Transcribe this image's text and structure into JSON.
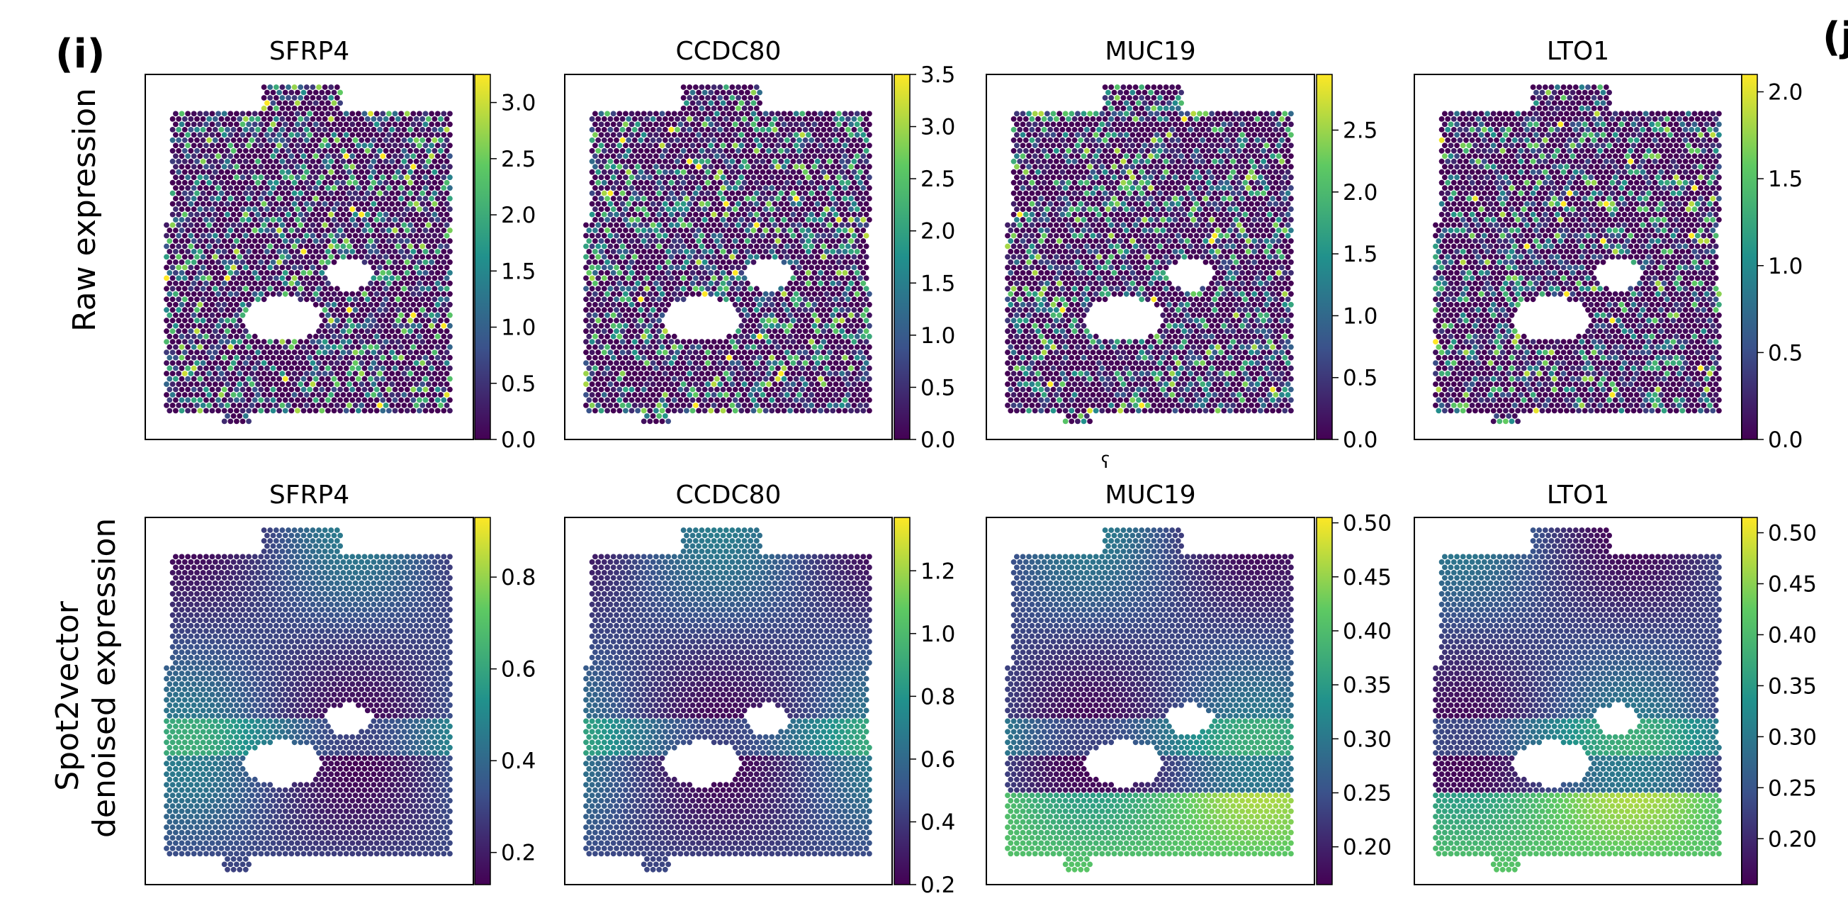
{
  "panel_labels": {
    "left": "(i)",
    "right": "(j"
  },
  "row_labels": {
    "raw": "Raw expression",
    "denoised_line1": "Spot2vector",
    "denoised_line2": "denoised expression"
  },
  "stray_mark": "ʕ",
  "colormap": {
    "name": "viridis",
    "stops": [
      "#440154",
      "#3b528b",
      "#21918c",
      "#5ec962",
      "#fde725"
    ]
  },
  "chart_data": [
    {
      "type": "heatmap",
      "row": "Raw expression",
      "title": "SFRP4",
      "colorbar": {
        "range": [
          0.0,
          3.25
        ],
        "ticks": [
          0.0,
          0.5,
          1.0,
          1.5,
          2.0,
          2.5,
          3.0
        ],
        "tick_labels": [
          "0.0",
          "0.5",
          "1.0",
          "1.5",
          "2.0",
          "2.5",
          "3.0"
        ]
      }
    },
    {
      "type": "heatmap",
      "row": "Raw expression",
      "title": "CCDC80",
      "colorbar": {
        "range": [
          0.0,
          3.5
        ],
        "ticks": [
          0.0,
          0.5,
          1.0,
          1.5,
          2.0,
          2.5,
          3.0,
          3.5
        ],
        "tick_labels": [
          "0.0",
          "0.5",
          "1.0",
          "1.5",
          "2.0",
          "2.5",
          "3.0",
          "3.5"
        ]
      }
    },
    {
      "type": "heatmap",
      "row": "Raw expression",
      "title": "MUC19",
      "colorbar": {
        "range": [
          0.0,
          2.95
        ],
        "ticks": [
          0.0,
          0.5,
          1.0,
          1.5,
          2.0,
          2.5
        ],
        "tick_labels": [
          "0.0",
          "0.5",
          "1.0",
          "1.5",
          "2.0",
          "2.5"
        ]
      }
    },
    {
      "type": "heatmap",
      "row": "Raw expression",
      "title": "LTO1",
      "colorbar": {
        "range": [
          0.0,
          2.1
        ],
        "ticks": [
          0.0,
          0.5,
          1.0,
          1.5,
          2.0
        ],
        "tick_labels": [
          "0.0",
          "0.5",
          "1.0",
          "1.5",
          "2.0"
        ]
      }
    },
    {
      "type": "heatmap",
      "row": "Spot2vector denoised expression",
      "title": "SFRP4",
      "colorbar": {
        "range": [
          0.13,
          0.93
        ],
        "ticks": [
          0.2,
          0.4,
          0.6,
          0.8
        ],
        "tick_labels": [
          "0.2",
          "0.4",
          "0.6",
          "0.8"
        ]
      }
    },
    {
      "type": "heatmap",
      "row": "Spot2vector denoised expression",
      "title": "CCDC80",
      "colorbar": {
        "range": [
          0.2,
          1.37
        ],
        "ticks": [
          0.2,
          0.4,
          0.6,
          0.8,
          1.0,
          1.2
        ],
        "tick_labels": [
          "0.2",
          "0.4",
          "0.6",
          "0.8",
          "1.0",
          "1.2"
        ]
      }
    },
    {
      "type": "heatmap",
      "row": "Spot2vector denoised expression",
      "title": "MUC19",
      "colorbar": {
        "range": [
          0.165,
          0.505
        ],
        "ticks": [
          0.2,
          0.25,
          0.3,
          0.35,
          0.4,
          0.45,
          0.5
        ],
        "tick_labels": [
          "0.20",
          "0.25",
          "0.30",
          "0.35",
          "0.40",
          "0.45",
          "0.50"
        ]
      }
    },
    {
      "type": "heatmap",
      "row": "Spot2vector denoised expression",
      "title": "LTO1",
      "colorbar": {
        "range": [
          0.155,
          0.515
        ],
        "ticks": [
          0.2,
          0.25,
          0.3,
          0.35,
          0.4,
          0.45,
          0.5
        ],
        "tick_labels": [
          "0.20",
          "0.25",
          "0.30",
          "0.35",
          "0.40",
          "0.45",
          "0.50"
        ]
      }
    }
  ]
}
